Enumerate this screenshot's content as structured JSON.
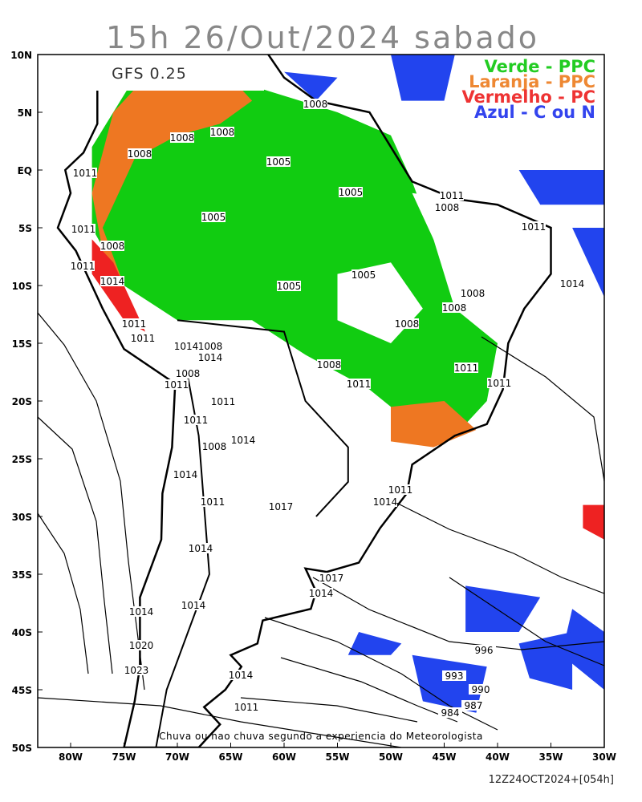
{
  "header": {
    "title": "15h 26/Out/2024 sabado",
    "model": "GFS 0.25"
  },
  "legend": [
    "Verde - PPC",
    "Laranja - PPC",
    "Vermelho - PC",
    "Azul - C ou N"
  ],
  "lat_labels": [
    "10N",
    "5N",
    "EQ",
    "5S",
    "10S",
    "15S",
    "20S",
    "25S",
    "30S",
    "35S",
    "40S",
    "45S",
    "50S"
  ],
  "lon_labels": [
    "80W",
    "75W",
    "70W",
    "65W",
    "60W",
    "55W",
    "50W",
    "45W",
    "40W",
    "35W",
    "30W"
  ],
  "isobar_labels": [
    "1008",
    "1008",
    "1008",
    "1008",
    "1011",
    "1005",
    "1005",
    "1011",
    "1008",
    "1005",
    "1011",
    "1011",
    "1008",
    "1011",
    "1014",
    "1005",
    "1005",
    "1014",
    "1008",
    "1008",
    "1008",
    "1011",
    "1011",
    "1014",
    "1008",
    "1014",
    "1008",
    "1011",
    "1008",
    "1011",
    "1011",
    "1011",
    "1011",
    "1011",
    "1014",
    "1008",
    "1014",
    "1011",
    "1014",
    "1017",
    "1011",
    "1014",
    "1017",
    "1014",
    "1014",
    "1014",
    "1020",
    "996",
    "1023",
    "1014",
    "993",
    "990",
    "987",
    "1011",
    "984"
  ],
  "footer": {
    "note": "Chuva ou nao chuva segundo a experiencia do Meteorologista",
    "stamp": "12Z24OCT2024+[054h]"
  }
}
